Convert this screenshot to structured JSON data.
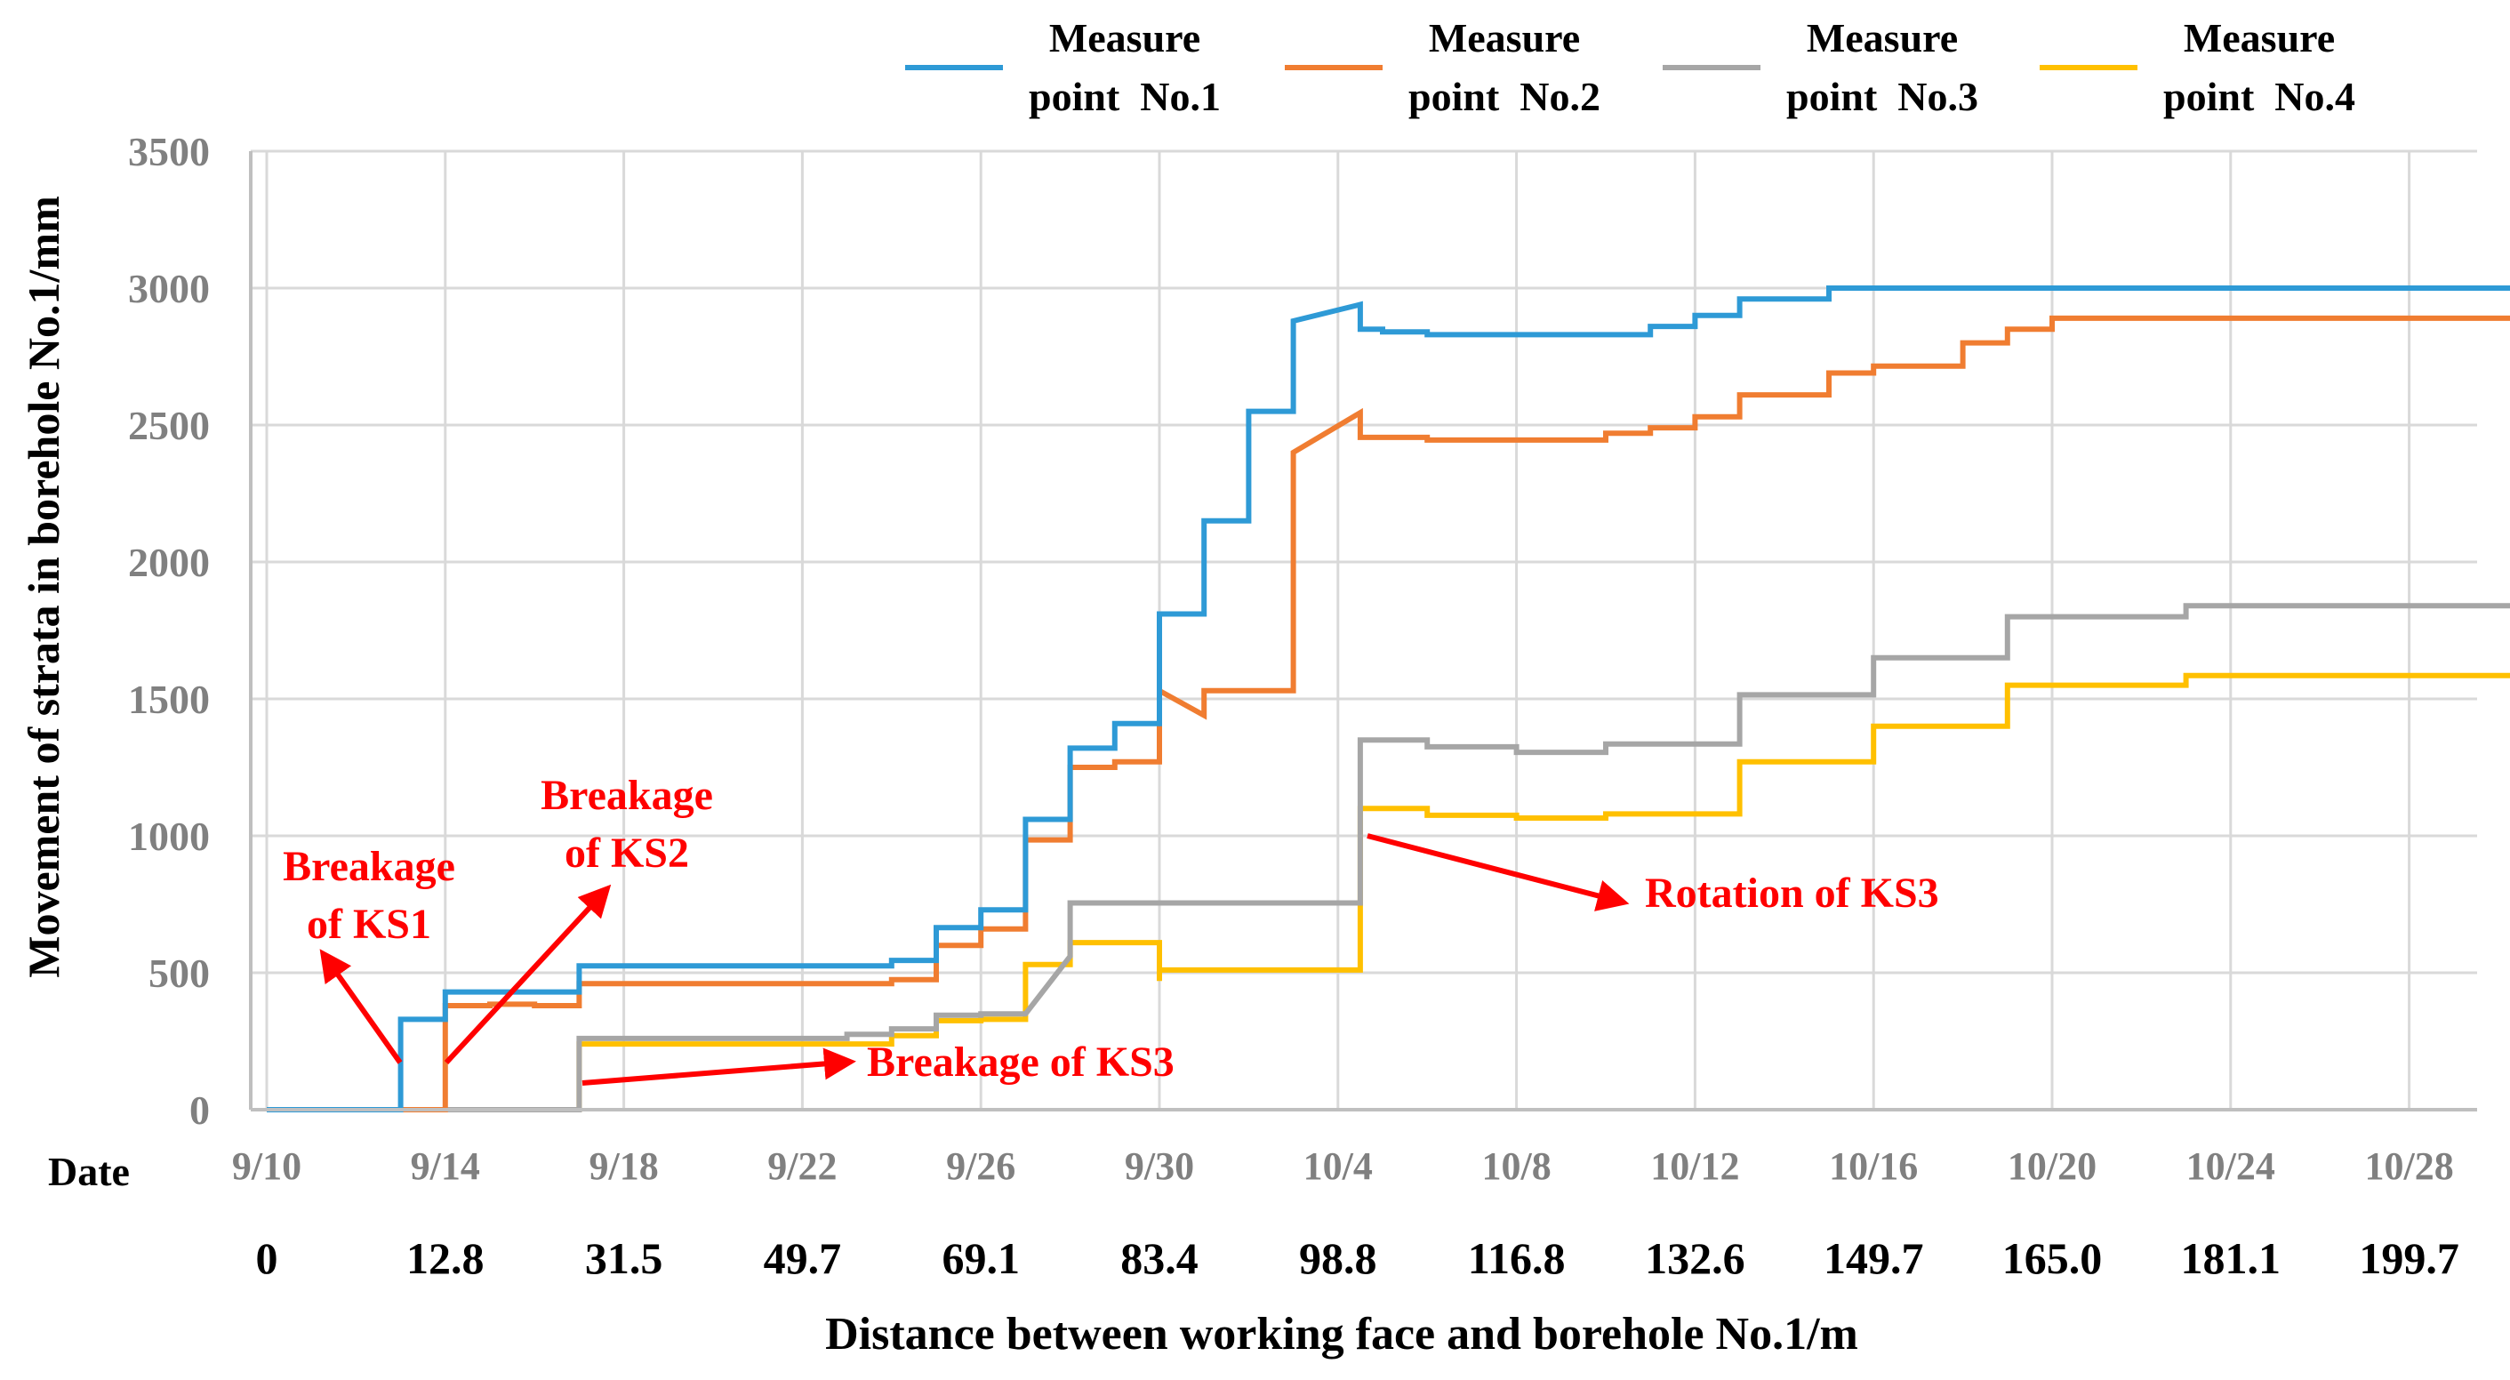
{
  "chart_data": {
    "type": "line",
    "step": true,
    "ylabel": "Movement of strata in borehole No.1/mm",
    "xlabel": "Distance between working face and borehole No.1/m",
    "date_row_label": "Date",
    "ylim": [
      0,
      3500
    ],
    "y_ticks": [
      0,
      500,
      1000,
      1500,
      2000,
      2500,
      3000,
      3500
    ],
    "xlim": [
      0,
      52
    ],
    "x_unit": "days since 9/10",
    "date_ticks": [
      {
        "x": 0,
        "label": "9/10"
      },
      {
        "x": 4,
        "label": "9/14"
      },
      {
        "x": 8,
        "label": "9/18"
      },
      {
        "x": 12,
        "label": "9/22"
      },
      {
        "x": 16,
        "label": "9/26"
      },
      {
        "x": 20,
        "label": "9/30"
      },
      {
        "x": 24,
        "label": "10/4"
      },
      {
        "x": 28,
        "label": "10/8"
      },
      {
        "x": 32,
        "label": "10/12"
      },
      {
        "x": 36,
        "label": "10/16"
      },
      {
        "x": 40,
        "label": "10/20"
      },
      {
        "x": 44,
        "label": "10/24"
      },
      {
        "x": 48,
        "label": "10/28"
      }
    ],
    "distance_ticks": [
      {
        "x": 0,
        "label": "0"
      },
      {
        "x": 4,
        "label": "12.8"
      },
      {
        "x": 8,
        "label": "31.5"
      },
      {
        "x": 12,
        "label": "49.7"
      },
      {
        "x": 16,
        "label": "69.1"
      },
      {
        "x": 20,
        "label": "83.4"
      },
      {
        "x": 24,
        "label": "98.8"
      },
      {
        "x": 28,
        "label": "116.8"
      },
      {
        "x": 32,
        "label": "132.6"
      },
      {
        "x": 36,
        "label": "149.7"
      },
      {
        "x": 40,
        "label": "165.0"
      },
      {
        "x": 44,
        "label": "181.1"
      },
      {
        "x": 48,
        "label": "199.7"
      }
    ],
    "series": [
      {
        "name": "Measure point No.1",
        "legend_lines": [
          "Measure",
          "point  No.1"
        ],
        "color": "#2E9AD6",
        "points": [
          [
            0,
            0
          ],
          [
            3,
            0
          ],
          [
            3,
            330
          ],
          [
            4,
            330
          ],
          [
            4,
            430
          ],
          [
            7,
            430
          ],
          [
            7,
            525
          ],
          [
            14,
            525
          ],
          [
            14,
            545
          ],
          [
            15,
            545
          ],
          [
            15,
            665
          ],
          [
            16,
            665
          ],
          [
            16,
            730
          ],
          [
            17,
            730
          ],
          [
            17,
            1060
          ],
          [
            18,
            1060
          ],
          [
            18,
            1320
          ],
          [
            19,
            1320
          ],
          [
            19,
            1410
          ],
          [
            20,
            1410
          ],
          [
            20,
            1810
          ],
          [
            21,
            1810
          ],
          [
            21,
            2150
          ],
          [
            22,
            2150
          ],
          [
            22,
            2550
          ],
          [
            23,
            2550
          ],
          [
            23,
            2880
          ],
          [
            24.5,
            2940
          ],
          [
            24.5,
            2850
          ],
          [
            25,
            2850
          ],
          [
            25,
            2840
          ],
          [
            26,
            2840
          ],
          [
            26,
            2830
          ],
          [
            31,
            2830
          ],
          [
            31,
            2860
          ],
          [
            32,
            2860
          ],
          [
            32,
            2900
          ],
          [
            33,
            2900
          ],
          [
            33,
            2960
          ],
          [
            35,
            2960
          ],
          [
            35,
            3000
          ],
          [
            52,
            3000
          ]
        ]
      },
      {
        "name": "Measure point No.2",
        "legend_lines": [
          "Measure",
          "point  No.2"
        ],
        "color": "#F07D31",
        "points": [
          [
            0,
            0
          ],
          [
            4,
            0
          ],
          [
            4,
            380
          ],
          [
            5,
            380
          ],
          [
            5,
            385
          ],
          [
            6,
            385
          ],
          [
            6,
            380
          ],
          [
            7,
            380
          ],
          [
            7,
            460
          ],
          [
            14,
            460
          ],
          [
            14,
            475
          ],
          [
            15,
            475
          ],
          [
            15,
            600
          ],
          [
            16,
            600
          ],
          [
            16,
            660
          ],
          [
            17,
            660
          ],
          [
            17,
            985
          ],
          [
            18,
            985
          ],
          [
            18,
            1250
          ],
          [
            19,
            1250
          ],
          [
            19,
            1270
          ],
          [
            20,
            1270
          ],
          [
            20,
            1530
          ],
          [
            21,
            1440
          ],
          [
            21,
            1530
          ],
          [
            23,
            1530
          ],
          [
            23,
            2400
          ],
          [
            24.5,
            2545
          ],
          [
            24.5,
            2455
          ],
          [
            26,
            2455
          ],
          [
            26,
            2445
          ],
          [
            30,
            2445
          ],
          [
            30,
            2470
          ],
          [
            31,
            2470
          ],
          [
            31,
            2490
          ],
          [
            32,
            2490
          ],
          [
            32,
            2530
          ],
          [
            33,
            2530
          ],
          [
            33,
            2610
          ],
          [
            35,
            2610
          ],
          [
            35,
            2690
          ],
          [
            36,
            2690
          ],
          [
            36,
            2715
          ],
          [
            38,
            2715
          ],
          [
            38,
            2800
          ],
          [
            39,
            2800
          ],
          [
            39,
            2850
          ],
          [
            40,
            2850
          ],
          [
            40,
            2890
          ],
          [
            52,
            2890
          ]
        ]
      },
      {
        "name": "Measure point No.3",
        "legend_lines": [
          "Measure",
          "point  No.3"
        ],
        "color": "#A6A6A6",
        "points": [
          [
            0,
            0
          ],
          [
            7,
            0
          ],
          [
            7,
            260
          ],
          [
            13,
            260
          ],
          [
            13,
            275
          ],
          [
            14,
            275
          ],
          [
            14,
            295
          ],
          [
            15,
            295
          ],
          [
            15,
            345
          ],
          [
            16,
            345
          ],
          [
            16,
            350
          ],
          [
            17,
            350
          ],
          [
            18,
            560
          ],
          [
            18,
            755
          ],
          [
            24.5,
            755
          ],
          [
            24.5,
            1350
          ],
          [
            26,
            1350
          ],
          [
            26,
            1325
          ],
          [
            28,
            1325
          ],
          [
            28,
            1305
          ],
          [
            30,
            1305
          ],
          [
            30,
            1335
          ],
          [
            33,
            1335
          ],
          [
            33,
            1515
          ],
          [
            36,
            1515
          ],
          [
            36,
            1650
          ],
          [
            39,
            1650
          ],
          [
            39,
            1800
          ],
          [
            43,
            1800
          ],
          [
            43,
            1840
          ],
          [
            52,
            1840
          ]
        ]
      },
      {
        "name": "Measure point No.4",
        "legend_lines": [
          "Measure",
          "point  No.4"
        ],
        "color": "#FFC000",
        "points": [
          [
            0,
            0
          ],
          [
            7,
            0
          ],
          [
            7,
            240
          ],
          [
            14,
            240
          ],
          [
            14,
            270
          ],
          [
            15,
            270
          ],
          [
            15,
            325
          ],
          [
            16,
            325
          ],
          [
            16,
            330
          ],
          [
            17,
            330
          ],
          [
            17,
            530
          ],
          [
            18,
            530
          ],
          [
            18,
            610
          ],
          [
            20,
            610
          ],
          [
            20,
            470
          ],
          [
            20,
            510
          ],
          [
            24.5,
            510
          ],
          [
            24.5,
            1100
          ],
          [
            26,
            1100
          ],
          [
            26,
            1075
          ],
          [
            28,
            1075
          ],
          [
            28,
            1065
          ],
          [
            30,
            1065
          ],
          [
            30,
            1080
          ],
          [
            33,
            1080
          ],
          [
            33,
            1270
          ],
          [
            36,
            1270
          ],
          [
            36,
            1400
          ],
          [
            39,
            1400
          ],
          [
            39,
            1550
          ],
          [
            43,
            1550
          ],
          [
            43,
            1585
          ],
          [
            52,
            1585
          ]
        ]
      }
    ],
    "annotations": [
      {
        "lines": [
          "Breakage",
          "of KS1"
        ],
        "color": "#FF0000"
      },
      {
        "lines": [
          "Breakage",
          "of KS2"
        ],
        "color": "#FF0000"
      },
      {
        "lines": [
          "Breakage of KS3"
        ],
        "color": "#FF0000"
      },
      {
        "lines": [
          "Rotation of KS3"
        ],
        "color": "#FF0000"
      }
    ]
  }
}
